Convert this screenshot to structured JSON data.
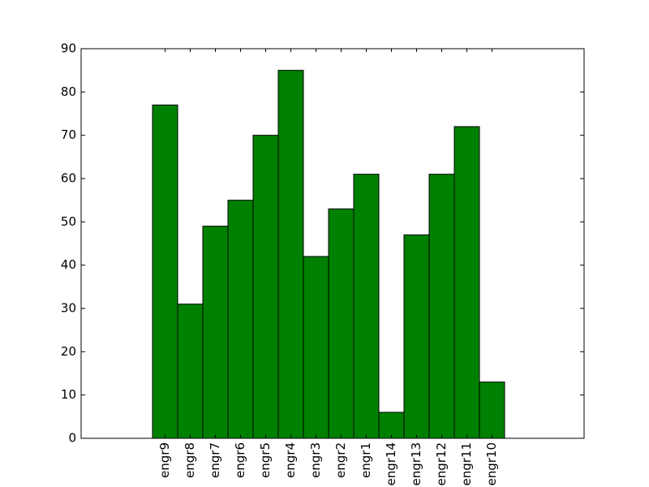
{
  "chart_data": {
    "type": "bar",
    "categories": [
      "engr9",
      "engr8",
      "engr7",
      "engr6",
      "engr5",
      "engr4",
      "engr3",
      "engr2",
      "engr1",
      "engr14",
      "engr13",
      "engr12",
      "engr11",
      "engr10"
    ],
    "values": [
      77,
      31,
      49,
      55,
      70,
      85,
      42,
      53,
      61,
      6,
      47,
      61,
      72,
      13
    ],
    "color": "#008000",
    "ylim": [
      0,
      90
    ],
    "yticks": [
      0,
      10,
      20,
      30,
      40,
      50,
      60,
      70,
      80,
      90
    ]
  }
}
